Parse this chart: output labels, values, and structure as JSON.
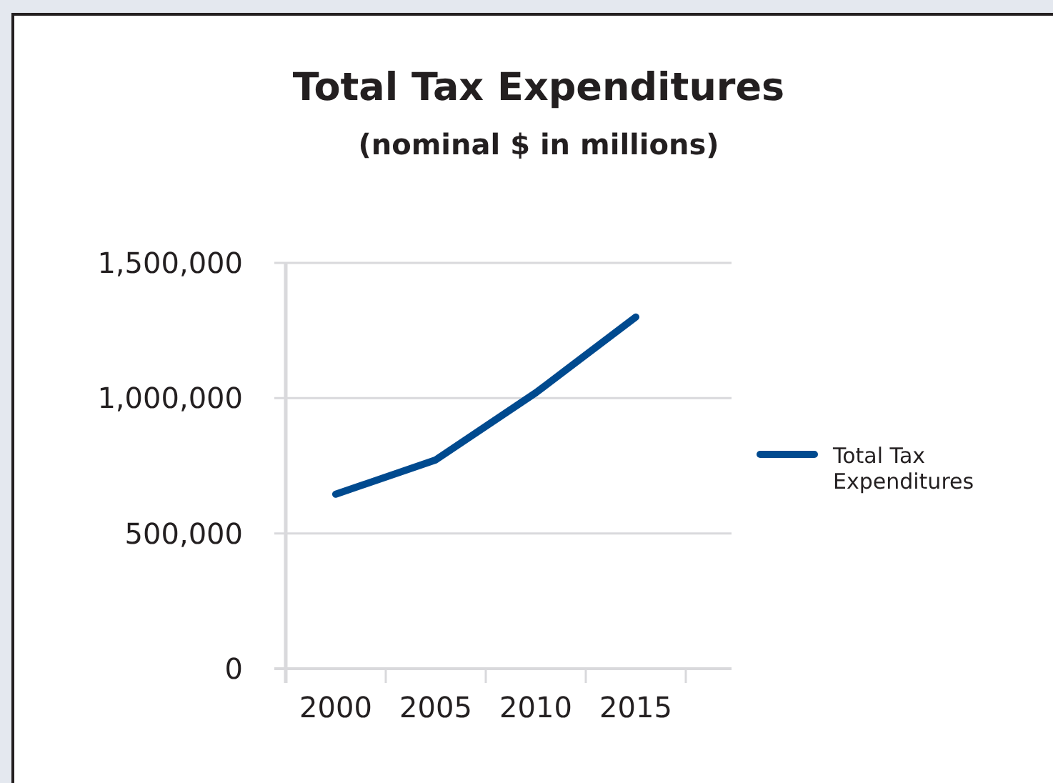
{
  "chart_data": {
    "type": "line",
    "title": "Total Tax Expenditures",
    "subtitle": "(nominal $ in millions)",
    "categories": [
      "2000",
      "2005",
      "2010",
      "2015"
    ],
    "series": [
      {
        "name": "Total Tax Expenditures",
        "color": "#004a8f",
        "values": [
          645000,
          772000,
          1020000,
          1300000
        ]
      }
    ],
    "ylim": [
      0,
      1500000
    ],
    "yticks": [
      {
        "value": 0,
        "label": "0"
      },
      {
        "value": 500000,
        "label": "500,000"
      },
      {
        "value": 1000000,
        "label": "1,000,000"
      },
      {
        "value": 1500000,
        "label": "1,500,000"
      }
    ],
    "grid": "y",
    "legend": "right",
    "marker": "none",
    "line_style": "solid"
  }
}
